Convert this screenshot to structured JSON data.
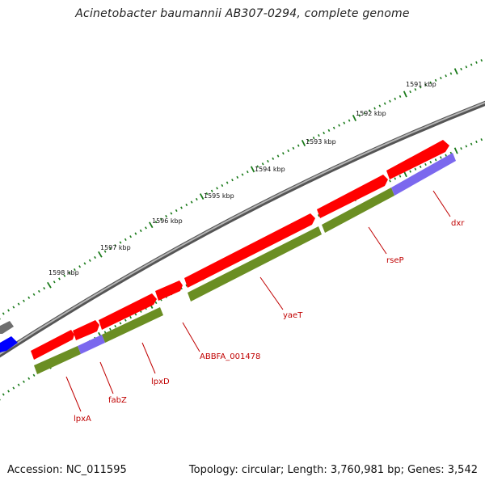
{
  "title": "Acinetobacter baumannii AB307-0294, complete genome",
  "footer": {
    "accession": "Accession: NC_011595",
    "topology": "Topology: circular; Length: 3,760,981 bp; Genes: 3,542"
  },
  "colors": {
    "backbone": "#8c8c8c",
    "forward_feature": "#ff0000",
    "cds": "#6b8e23",
    "misc": "#7b68ee",
    "other_gene": "#0000ff",
    "other_feature": "#6e6e6e",
    "ticks": "#1a7a1a",
    "label": "#c00000"
  },
  "ticks": [
    {
      "label": "1591 kbp",
      "kbp": 1591
    },
    {
      "label": "1592 kbp",
      "kbp": 1592
    },
    {
      "label": "1593 kbp",
      "kbp": 1593
    },
    {
      "label": "1594 kbp",
      "kbp": 1594
    },
    {
      "label": "1595 kbp",
      "kbp": 1595
    },
    {
      "label": "1596 kbp",
      "kbp": 1596
    },
    {
      "label": "1597 kbp",
      "kbp": 1597
    },
    {
      "label": "1598 kbp",
      "kbp": 1598
    }
  ],
  "genes": [
    {
      "name": "dxr"
    },
    {
      "name": "rseP"
    },
    {
      "name": "yaeT"
    },
    {
      "name": "ABBFA_001478"
    },
    {
      "name": "lpxD"
    },
    {
      "name": "fabZ"
    },
    {
      "name": "lpxA"
    }
  ]
}
